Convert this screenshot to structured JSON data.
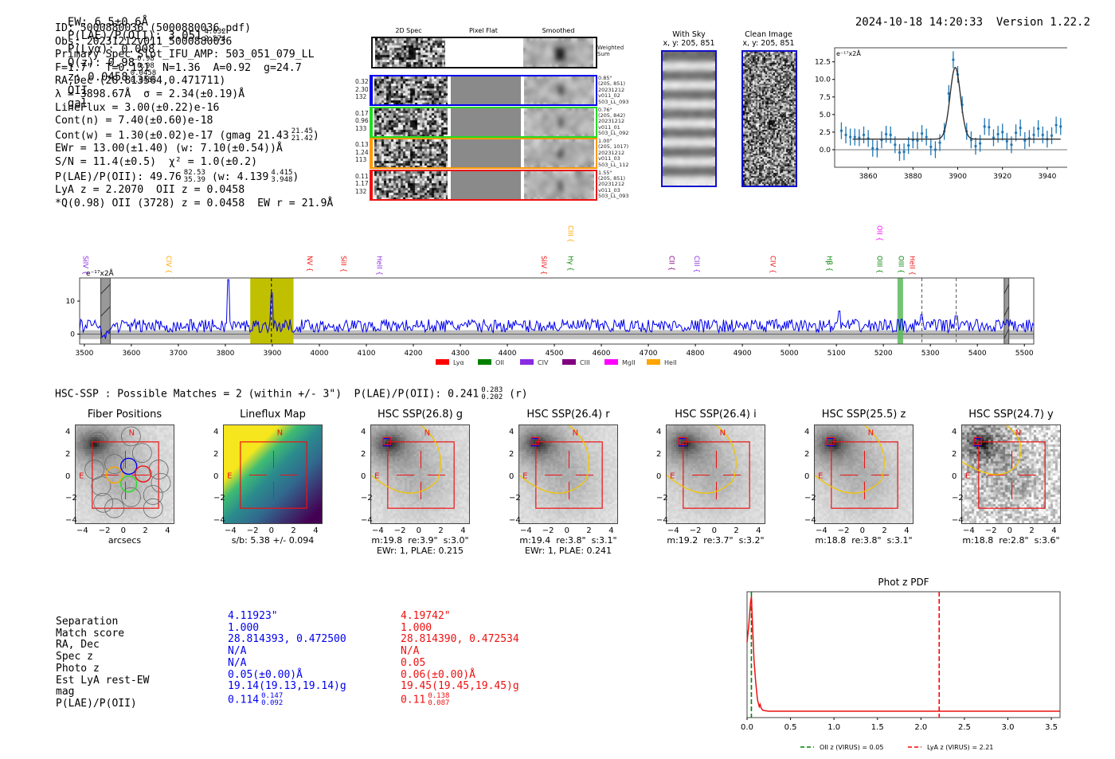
{
  "header": {
    "ew": "EW: 6.5±0.6Å",
    "plae_label": "P(LAE)/P(OII): 3.051",
    "plae_hi": "4.032",
    "plae_lo": "2.574",
    "plya": "P(Lyα): 0.008",
    "qz_label": "Q(z): 0.98",
    "qz_hi": "0.98",
    "qz_lo": "0.98",
    "z_label": "z: 0.0458",
    "z_hi": "0.0458",
    "z_lo": "0.0458",
    "z_line": "OII",
    "classification": "gal",
    "timestamp": "2024-10-18 14:20:33",
    "version": "Version 1.22.2"
  },
  "info": {
    "id": "ID: 5000880036 (5000880036.pdf)",
    "obs": "Obs: 20231212v011_5000880036",
    "primary": "Primary Spec_Slot_IFU_AMP: 503_051_079_LL",
    "params": "F=1.7\"  T=0.131  N=1.36  A=0.92  g=24.7",
    "radec": "RA,Dec (28.813564,0.471711)",
    "lambda": "λ = 3898.67Å  σ = 2.34(±0.19)Å",
    "lineflux": "LineFlux = 3.00(±0.22)e-16",
    "contn": "Cont(n) = 7.40(±0.60)e-18",
    "contw": "Cont(w) = 1.30(±0.02)e-17 (gmag 21.43",
    "contw_hi": "21.45",
    "contw_lo": "21.42",
    "contw_end": ")",
    "ewr": "EWr = 13.00(±1.40) (w: 7.10(±0.54))Å",
    "sn": "S/N = 11.4(±0.5)  χ² = 1.0(±0.2)",
    "plae": "P(LAE)/P(OII): 49.76",
    "plae_hi": "82.53",
    "plae_lo": "35.39",
    "plae_w": "(w: 4.139",
    "plae_w_hi": "4.415",
    "plae_w_lo": "3.948",
    "plae_end": ")",
    "lyaz": "LyA z = 2.2070  OII z = 0.0458",
    "q": "*Q(0.98) OII (3728) z = 0.0458  EW r = 21.9Å"
  },
  "spec2d": {
    "columns": [
      "2D Spec",
      "Pixel Flat",
      "Smoothed"
    ],
    "weighted_label": "Weighted\nSum",
    "fibers": [
      {
        "color": "#0000ee",
        "stats": [
          "0.32",
          "2.30",
          "132"
        ],
        "meta": [
          "0.85\"",
          "(205, 851)",
          "20231212",
          "v011_02",
          "503_LL_093"
        ]
      },
      {
        "color": "#22dd22",
        "stats": [
          "0.17",
          "0.96",
          "133"
        ],
        "meta": [
          "0.76\"",
          "(205, 842)",
          "20231212",
          "v011_01",
          "503_LL_092"
        ]
      },
      {
        "color": "#ff9900",
        "stats": [
          "0.13",
          "1.24",
          "113"
        ],
        "meta": [
          "1.00\"",
          "(205, 1017)",
          "20231212",
          "v011_03",
          "503_LL_112"
        ]
      },
      {
        "color": "#ee1111",
        "stats": [
          "0.11",
          "1.17",
          "132"
        ],
        "meta": [
          "1.55\"",
          "(205, 851)",
          "20231212",
          "v011_03",
          "503_LL_093"
        ]
      }
    ]
  },
  "cutouts_top": {
    "with_sky": {
      "title": "With Sky",
      "xy": "x, y: 205, 851"
    },
    "clean": {
      "title": "Clean Image",
      "xy": "x, y: 205, 851"
    }
  },
  "chart_data": [
    {
      "type": "scatter",
      "name": "line-fit",
      "ylabel": "e⁻¹⁷x2Å",
      "xlim": [
        3845,
        3950
      ],
      "ylim": [
        -2.5,
        14.5
      ],
      "xticks": [
        3860,
        3880,
        3900,
        3920,
        3940
      ],
      "yticks": [
        "0.0",
        "2.5",
        "5.0",
        "7.5",
        "10.0",
        "12.5"
      ],
      "x": [
        3848,
        3850,
        3852,
        3854,
        3856,
        3858,
        3860,
        3862,
        3864,
        3866,
        3868,
        3870,
        3872,
        3874,
        3876,
        3878,
        3880,
        3882,
        3884,
        3886,
        3888,
        3890,
        3892,
        3894,
        3896,
        3898,
        3900,
        3902,
        3904,
        3906,
        3908,
        3910,
        3912,
        3914,
        3916,
        3918,
        3920,
        3922,
        3924,
        3926,
        3928,
        3930,
        3932,
        3934,
        3936,
        3938,
        3940,
        3942,
        3944,
        3946
      ],
      "y": [
        2.7,
        2.1,
        1.8,
        1.8,
        1.7,
        2.1,
        1.6,
        0.2,
        0.1,
        1.4,
        2.2,
        2.1,
        0.7,
        -0.4,
        -0.3,
        0.6,
        1.4,
        1.3,
        2.3,
        1.8,
        0.4,
        0.0,
        1.0,
        2.6,
        8.0,
        12.8,
        10.7,
        6.4,
        2.6,
        1.4,
        0.5,
        0.9,
        3.3,
        3.2,
        1.7,
        2.2,
        2.5,
        1.2,
        0.7,
        2.4,
        3.1,
        1.3,
        1.6,
        2.1,
        3.0,
        2.1,
        1.5,
        2.0,
        3.5,
        3.3
      ],
      "err": 1.2,
      "fit": {
        "continuum": 1.5,
        "amplitude": 10.2,
        "center": 3898.9,
        "sigma": 2.34,
        "range": [
          3853,
          3946
        ]
      }
    },
    {
      "type": "line",
      "name": "full-spectrum",
      "ylabel": "e⁻¹⁷x2Å",
      "xlim": [
        3490,
        5520
      ],
      "ylim": [
        -3,
        17
      ],
      "xticks": [
        3500,
        3600,
        3700,
        3800,
        3900,
        4000,
        4100,
        4200,
        4300,
        4400,
        4500,
        4600,
        4700,
        4800,
        4900,
        5000,
        5100,
        5200,
        5300,
        5400,
        5500
      ],
      "yticks": [
        "0",
        "10"
      ],
      "peaks": [
        {
          "x": 3806,
          "y": 16.5
        },
        {
          "x": 3898,
          "y": 12.5
        },
        {
          "x": 5106,
          "y": 7
        },
        {
          "x": 5238,
          "y": 4.5
        },
        {
          "x": 5282,
          "y": 6
        },
        {
          "x": 5355,
          "y": 5.5
        }
      ],
      "highlight_band": {
        "from": 3853,
        "to": 3945,
        "color": "#c0c000"
      },
      "green_band": {
        "from": 5230,
        "to": 5242
      },
      "masked": [
        {
          "from": 3535,
          "to": 3555
        },
        {
          "from": 5457,
          "to": 5467
        }
      ],
      "dashed_lines": [
        3898,
        5282,
        5355
      ],
      "line_labels": [
        {
          "label": "SiIV",
          "x": 3503,
          "color": "#8a2be2",
          "row": 1
        },
        {
          "label": "CIV",
          "x": 3680,
          "color": "#ffa500",
          "row": 1
        },
        {
          "label": "NV",
          "x": 3980,
          "color": "#ee1111",
          "row": 1
        },
        {
          "label": "SiII",
          "x": 4052,
          "color": "#ee1111",
          "row": 1
        },
        {
          "label": "HeII",
          "x": 4128,
          "color": "#8a2be2",
          "row": 1
        },
        {
          "label": "SiIV",
          "x": 4478,
          "color": "#ee1111",
          "row": 1
        },
        {
          "label": "CIII",
          "x": 4535,
          "color": "#ffa500",
          "row": 0
        },
        {
          "label": "Hγ",
          "x": 4535,
          "color": "#008000",
          "row": 1
        },
        {
          "label": "CII",
          "x": 4750,
          "color": "#800080",
          "row": 1
        },
        {
          "label": "CIII",
          "x": 4803,
          "color": "#8a2be2",
          "row": 1
        },
        {
          "label": "CIV",
          "x": 4965,
          "color": "#ee1111",
          "row": 1
        },
        {
          "label": "Hβ",
          "x": 5085,
          "color": "#008000",
          "row": 1
        },
        {
          "label": "OII",
          "x": 5192,
          "color": "#ff00ff",
          "row": 0
        },
        {
          "label": "OIII",
          "x": 5192,
          "color": "#008000",
          "row": 1
        },
        {
          "label": "OIII",
          "x": 5238,
          "color": "#008000",
          "row": 1
        },
        {
          "label": "HeII",
          "x": 5262,
          "color": "#ee1111",
          "row": 1
        }
      ],
      "legend": [
        {
          "label": "Lyα",
          "color": "#ff0000"
        },
        {
          "label": "OII",
          "color": "#008000"
        },
        {
          "label": "CIV",
          "color": "#8a2be2"
        },
        {
          "label": "CIII",
          "color": "#800080"
        },
        {
          "label": "MgII",
          "color": "#ff00ff"
        },
        {
          "label": "HeII",
          "color": "#ffa500"
        }
      ]
    },
    {
      "type": "line",
      "name": "phot-z-pdf",
      "title": "Phot z PDF",
      "xlim": [
        0,
        3.6
      ],
      "xticks": [
        "0.0",
        "0.5",
        "1.0",
        "1.5",
        "2.0",
        "2.5",
        "3.0",
        "3.5"
      ],
      "x": [
        0,
        0.02,
        0.04,
        0.05,
        0.06,
        0.08,
        0.1,
        0.12,
        0.14,
        0.15,
        0.16,
        0.18,
        0.2,
        0.25,
        3.6
      ],
      "y": [
        0.6,
        0.75,
        0.95,
        1.0,
        0.8,
        0.45,
        0.25,
        0.1,
        0.04,
        0.06,
        0.03,
        0.01,
        0.005,
        0.0,
        0.0
      ],
      "vlines": [
        {
          "x": 0.05,
          "color": "#008000",
          "label": "OII z (VIRUS) = 0.05"
        },
        {
          "x": 2.21,
          "color": "#ff0000",
          "label": "LyA z (VIRUS) = 2.21"
        }
      ]
    }
  ],
  "hsc": {
    "summary": "HSC-SSP : Possible Matches = 2 (within +/- 3\")  P(LAE)/P(OII): 0.241",
    "summary_hi": "0.283",
    "summary_lo": "0.202",
    "summary_end": "(r)",
    "ticks": [
      "4",
      "2",
      "0",
      "−2",
      "−4"
    ],
    "xticks": [
      "−4",
      "−2",
      "0",
      "2",
      "4"
    ],
    "panels": [
      {
        "title": "Fiber Positions",
        "caption1": "arcsecs",
        "caption2": "",
        "kind": "fibers"
      },
      {
        "title": "Lineflux Map",
        "caption1": "s/b: 5.38 +/- 0.094",
        "caption2": "",
        "kind": "lineflux"
      },
      {
        "title": "HSC SSP(26.8) g",
        "caption1": "m:19.8  re:3.9\"  s:3.0\"",
        "caption2": "EWr: 1, PLAE: 0.215",
        "kind": "hsc"
      },
      {
        "title": "HSC SSP(26.4) r",
        "caption1": "m:19.4  re:3.8\"  s:3.1\"",
        "caption2": "EWr: 1, PLAE: 0.241",
        "kind": "hsc"
      },
      {
        "title": "HSC SSP(26.4) i",
        "caption1": "m:19.2  re:3.7\"  s:3.2\"",
        "caption2": "",
        "kind": "hsc"
      },
      {
        "title": "HSC SSP(25.5) z",
        "caption1": "m:18.8  re:3.8\"  s:3.1\"",
        "caption2": "",
        "kind": "hsc"
      },
      {
        "title": "HSC SSP(24.7) y",
        "caption1": "m:18.8  re:2.8\"  s:3.6\"",
        "caption2": "",
        "kind": "hscy"
      }
    ],
    "compass": {
      "n": "N",
      "e": "E"
    }
  },
  "matches": {
    "labels": [
      "Separation",
      "Match score",
      "RA, Dec",
      "Spec z",
      "Photo z",
      "Est LyA rest-EW",
      "mag",
      "P(LAE)/P(OII)"
    ],
    "columns": [
      {
        "color": "#0000ee",
        "values": [
          "4.11923\"",
          "1.000",
          "28.814393, 0.472500",
          "N/A",
          "N/A",
          "0.05(±0.00)Å",
          "19.14(19.13,19.14)g",
          "0.114"
        ],
        "plae_hi": "0.147",
        "plae_lo": "0.092"
      },
      {
        "color": "#ee1111",
        "values": [
          "4.19742\"",
          "1.000",
          "28.814390, 0.472534",
          "N/A",
          "0.05",
          "0.06(±0.00)Å",
          "19.45(19.45,19.45)g",
          "0.11"
        ],
        "plae_hi": "0.138",
        "plae_lo": "0.087"
      }
    ]
  }
}
